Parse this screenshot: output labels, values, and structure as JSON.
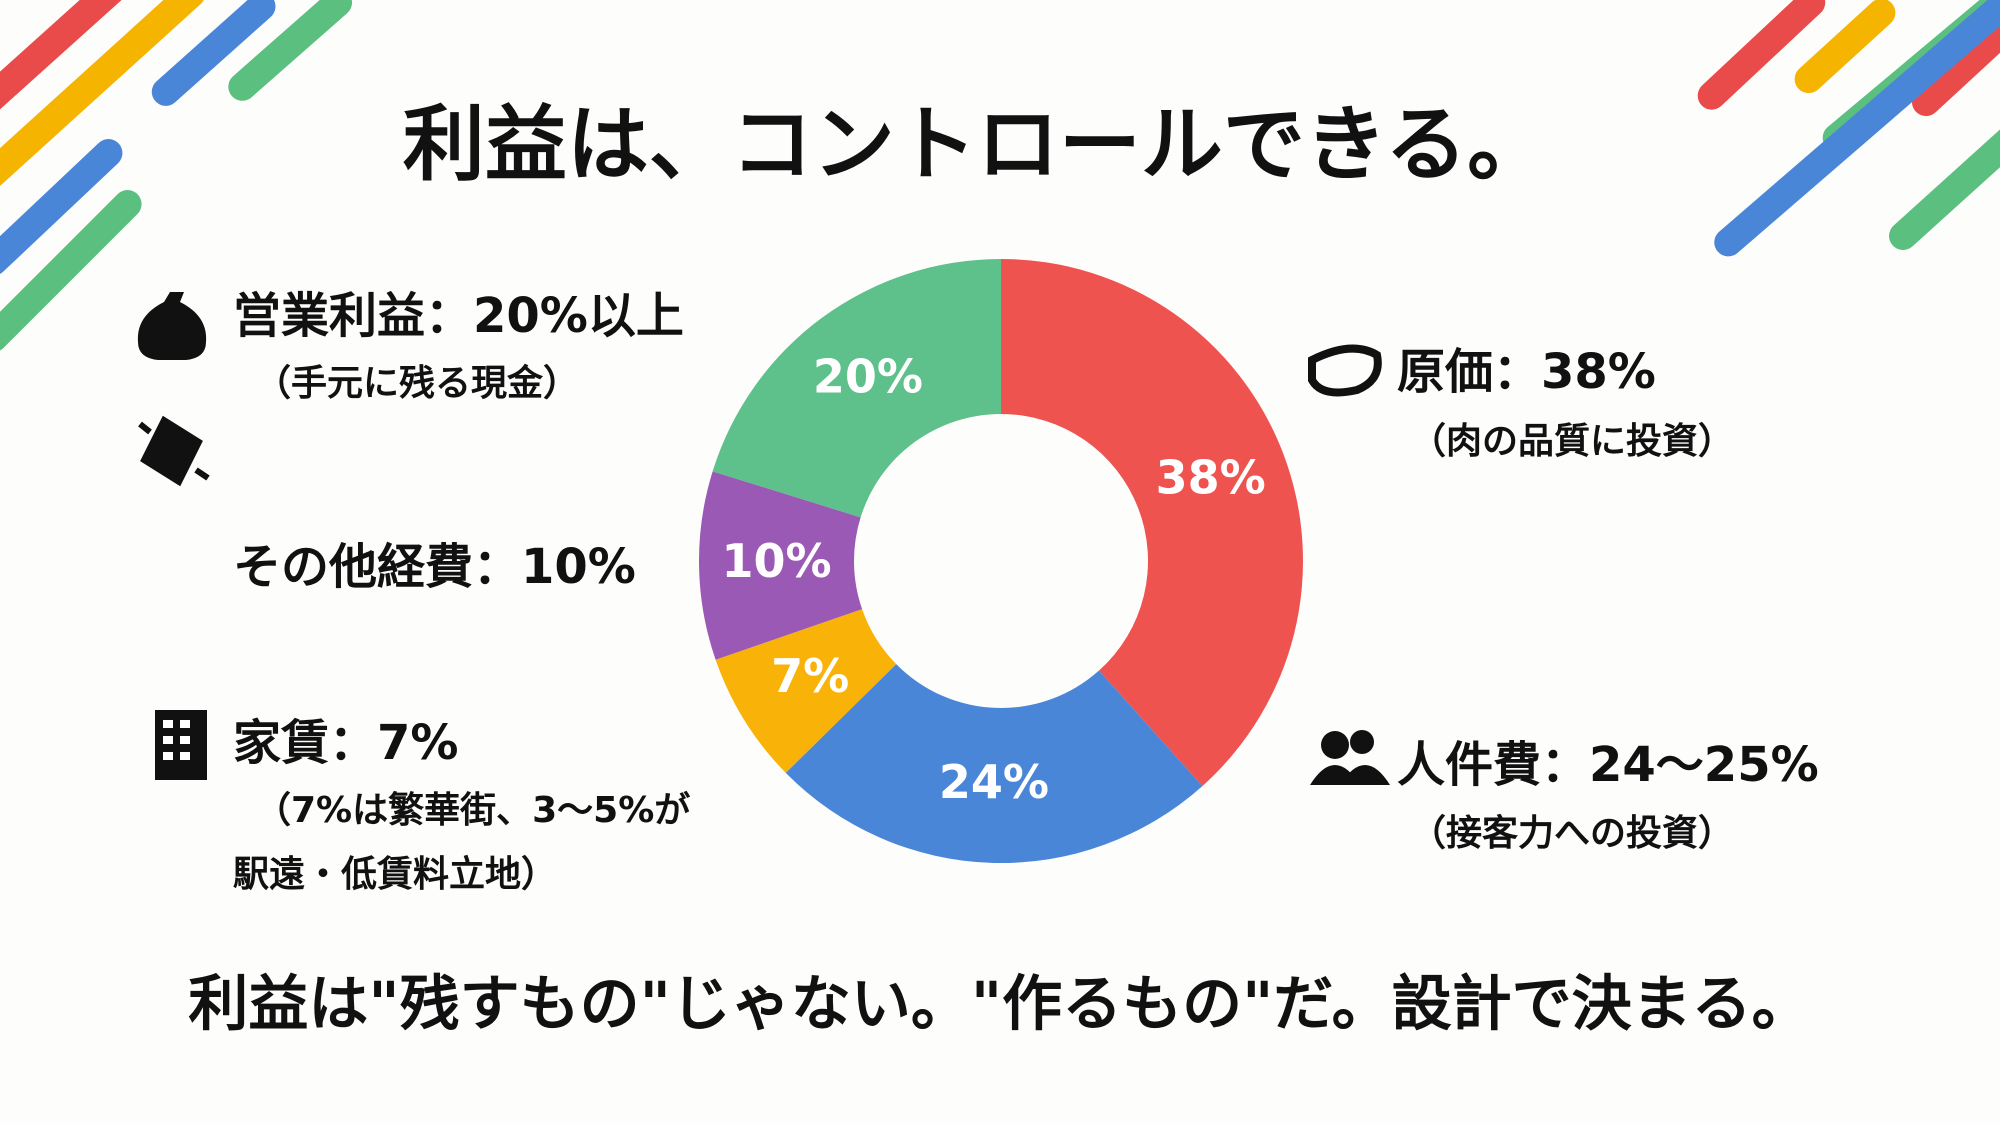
{
  "chart_data": {
    "type": "pie",
    "donut": true,
    "title": "利益は、コントロールできる。",
    "footer": "利益は\"残すもの\"じゃない。\"作るもの\"だ。設計で決まる。",
    "values": [
      38,
      24,
      7,
      10,
      20
    ],
    "value_labels": [
      "38%",
      "24%",
      "7%",
      "10%",
      "20%"
    ],
    "colors": [
      "#ef5350",
      "#4a86d8",
      "#f9b208",
      "#9a59b5",
      "#5ec08a"
    ],
    "categories": [
      "原価：38%",
      "人件費：24〜25%",
      "家賃：7%",
      "その他経費：10%",
      "営業利益：20%以上"
    ],
    "notes": [
      [
        "（肉の品質に投資）"
      ],
      [
        "（接客力への投資）"
      ],
      [
        "（7%は繁華街、3〜5%が",
        "駅遠・低賃料立地）"
      ],
      [],
      [
        "（手元に残る現金）"
      ]
    ]
  }
}
